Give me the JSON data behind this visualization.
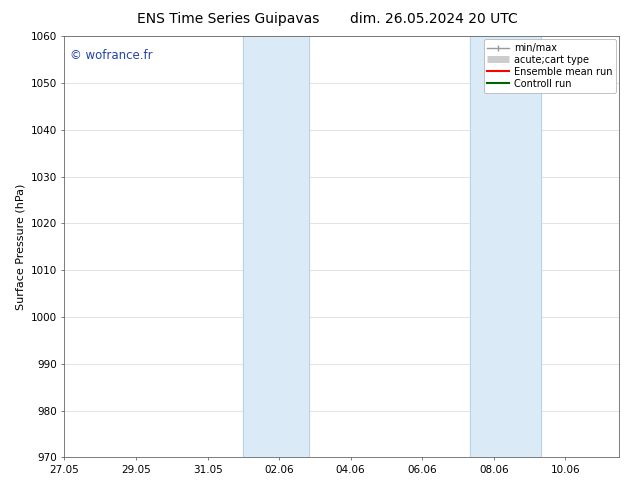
{
  "title_left": "ENS Time Series Guipavas",
  "title_right": "dim. 26.05.2024 20 UTC",
  "ylabel": "Surface Pressure (hPa)",
  "ylim": [
    970,
    1060
  ],
  "yticks": [
    970,
    980,
    990,
    1000,
    1010,
    1020,
    1030,
    1040,
    1050,
    1060
  ],
  "xtick_labels": [
    "27.05",
    "29.05",
    "31.05",
    "02.06",
    "04.06",
    "06.06",
    "08.06",
    "10.06"
  ],
  "xtick_positions_days": [
    0,
    2,
    4,
    6,
    8,
    10,
    12,
    14
  ],
  "total_days": 15.5,
  "shaded_bands": [
    {
      "start_day": 5.0,
      "end_day": 6.83
    },
    {
      "start_day": 11.33,
      "end_day": 13.33
    }
  ],
  "shaded_color": "#daeaf7",
  "watermark": "© wofrance.fr",
  "watermark_color": "#2244aa",
  "background_color": "#ffffff",
  "grid_color": "#cccccc",
  "legend_entries": [
    {
      "label": "min/max",
      "color": "#999999",
      "lw": 1.0,
      "style": "line_with_caps"
    },
    {
      "label": "acute;cart type",
      "color": "#cccccc",
      "lw": 5,
      "style": "thick"
    },
    {
      "label": "Ensemble mean run",
      "color": "#ff0000",
      "lw": 1.5,
      "style": "line"
    },
    {
      "label": "Controll run",
      "color": "#006600",
      "lw": 1.5,
      "style": "line"
    }
  ],
  "title_fontsize": 10,
  "tick_fontsize": 7.5,
  "ylabel_fontsize": 8,
  "legend_fontsize": 7
}
